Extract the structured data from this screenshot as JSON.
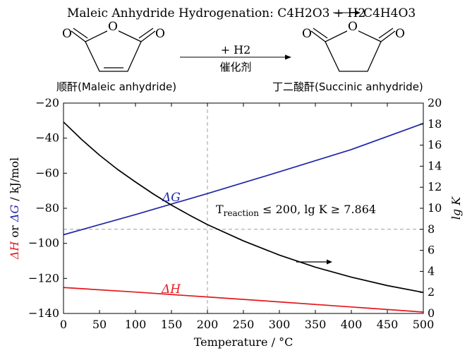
{
  "reaction_scheme": {
    "title_prefix": "Maleic Anhydride Hydrogenation: ",
    "equation_lhs": "C4H2O3 + H2",
    "equation_rhs": "C4H4O3",
    "reagent_above": "+ H2",
    "reagent_below": "催化剂",
    "atom_label": "O",
    "reactant_label": "顺酐(Maleic anhydride)",
    "product_label": "丁二酸酐(Succinic anhydride)"
  },
  "chart_data": {
    "type": "line",
    "xlabel": "Temperature / °C",
    "ylabel_left": {
      "part1": "ΔH",
      "part2": " or ",
      "part3": "ΔG",
      "part4": " / kJ/mol"
    },
    "ylabel_right": "lg K",
    "xlim": [
      0,
      500
    ],
    "ylim_left": [
      -140,
      -20
    ],
    "ylim_right": [
      0,
      20
    ],
    "x_ticks": [
      0,
      50,
      100,
      150,
      200,
      250,
      300,
      350,
      400,
      450,
      500
    ],
    "y_left_ticks": [
      -20,
      -40,
      -60,
      -80,
      -100,
      -120,
      -140
    ],
    "y_right_ticks": [
      0,
      2,
      4,
      6,
      8,
      10,
      12,
      14,
      16,
      18,
      20
    ],
    "grid": false,
    "colors": {
      "dH": "#e4191d",
      "dG": "#1f25a9",
      "lgK": "#000000",
      "guide": "#9e9e9e"
    },
    "series": [
      {
        "name": "ΔG",
        "axis": "left",
        "color": "#1f25a9",
        "x": [
          0,
          100,
          200,
          300,
          400,
          500
        ],
        "y": [
          -95.1,
          -83.6,
          -71.6,
          -59.2,
          -46.5,
          -31.6
        ]
      },
      {
        "name": "ΔH",
        "axis": "left",
        "color": "#e4191d",
        "x": [
          0,
          100,
          200,
          300,
          400,
          500
        ],
        "y": [
          -125.2,
          -127.8,
          -130.6,
          -133.4,
          -136.3,
          -139.2
        ]
      },
      {
        "axis": "right",
        "color": "#000000",
        "x": [
          0,
          25,
          50,
          75,
          100,
          125,
          150,
          175,
          200,
          250,
          300,
          350,
          400,
          450,
          500
        ],
        "y": [
          18.2,
          16.55,
          15.05,
          13.7,
          12.5,
          11.35,
          10.3,
          9.35,
          8.45,
          6.9,
          5.55,
          4.4,
          3.45,
          2.65,
          2.0
        ]
      }
    ],
    "guides": {
      "x": 200,
      "y_right": 8
    },
    "annotations": {
      "dG_label": "ΔG",
      "dH_label": "ΔH",
      "note_T": "T",
      "note_sub": "reaction",
      "note_rest": " ≤ 200, lg K ≥ 7.864"
    }
  }
}
